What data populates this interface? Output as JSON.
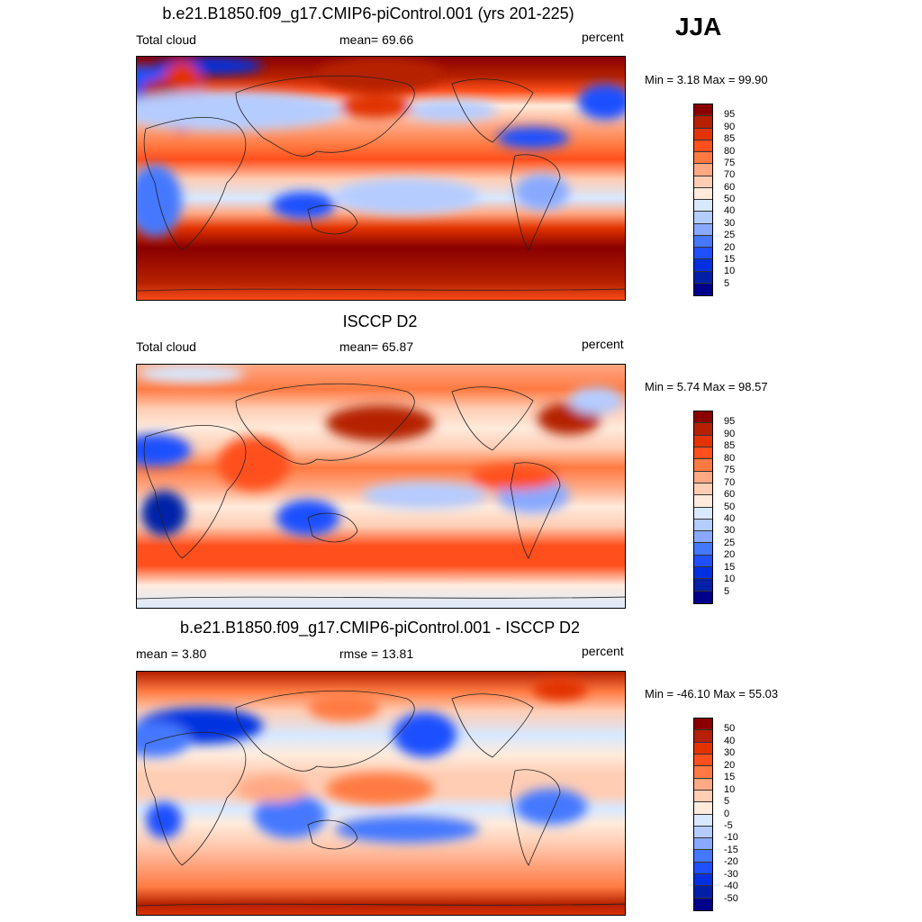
{
  "season": "JJA",
  "colorbar_colors": [
    "#8a0000",
    "#b52000",
    "#e23300",
    "#ff4f1c",
    "#ff7a42",
    "#ffa884",
    "#ffcdb4",
    "#ffebdc",
    "#d8e8ff",
    "#b5ccff",
    "#88a9ff",
    "#4478ff",
    "#1f4fff",
    "#0030e0",
    "#0020a8",
    "#00008a"
  ],
  "panels": [
    {
      "title": "b.e21.B1850.f09_g17.CMIP6-piControl.001 (yrs 201-225)",
      "left": "Total cloud",
      "center": "mean=  69.66",
      "right": "percent",
      "minmax": "Min =   3.18 Max =  99.90",
      "ticks": [
        "95",
        "90",
        "85",
        "80",
        "75",
        "70",
        "60",
        "50",
        "40",
        "30",
        "25",
        "20",
        "15",
        "10",
        "5"
      ]
    },
    {
      "title": "ISCCP D2",
      "left": "Total cloud",
      "center": "mean=  65.87",
      "right": "percent",
      "minmax": "Min =   5.74 Max =  98.57",
      "ticks": [
        "95",
        "90",
        "85",
        "80",
        "75",
        "70",
        "60",
        "50",
        "40",
        "30",
        "25",
        "20",
        "15",
        "10",
        "5"
      ]
    },
    {
      "title": "b.e21.B1850.f09_g17.CMIP6-piControl.001 - ISCCP D2",
      "left": "mean =   3.80",
      "center": "rmse =  13.81",
      "right": "percent",
      "minmax": "Min = -46.10 Max =  55.03",
      "ticks": [
        "50",
        "40",
        "30",
        "20",
        "15",
        "10",
        "5",
        "0",
        "-5",
        "-10",
        "-15",
        "-20",
        "-30",
        "-40",
        "-50"
      ]
    }
  ]
}
